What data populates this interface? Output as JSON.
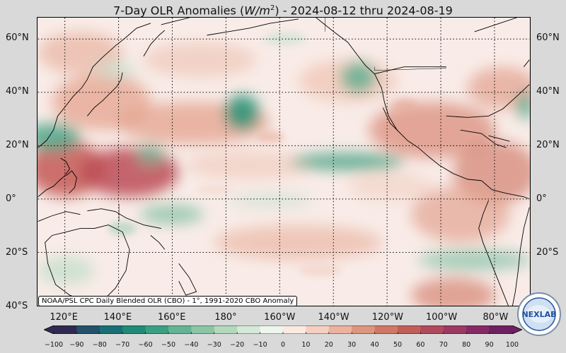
{
  "title": {
    "prefix": "7-Day OLR Anomalies (",
    "unit_var": "W/m",
    "unit_exp": "2",
    "suffix": ") - 2024-08-12 thru 2024-08-19"
  },
  "lat_labels": [
    "60°N",
    "40°N",
    "20°N",
    "0°",
    "20°S",
    "40°S"
  ],
  "lon_labels": [
    "120°E",
    "140°E",
    "160°E",
    "180°",
    "160°W",
    "140°W",
    "120°W",
    "100°W",
    "80°W"
  ],
  "credit": "NOAA/PSL CPC Daily Blended OLR (CBO) - 1°, 1991-2020 CBO Anomaly",
  "colorbar": {
    "ticks": [
      "−100",
      "−90",
      "−80",
      "−70",
      "−60",
      "−50",
      "−40",
      "−30",
      "−20",
      "−10",
      "0",
      "10",
      "20",
      "30",
      "40",
      "50",
      "60",
      "70",
      "80",
      "90",
      "100"
    ],
    "colors": [
      "#2f2a4f",
      "#23506a",
      "#196f73",
      "#1f8a78",
      "#3a9f82",
      "#63b394",
      "#8cc5a6",
      "#b3d8be",
      "#d5e9d8",
      "#eef5ef",
      "#fbeae3",
      "#f5cfc1",
      "#eab29f",
      "#dd9580",
      "#cf7867",
      "#c05e5a",
      "#b04a5d",
      "#9c3963",
      "#862a66",
      "#6e2160"
    ]
  },
  "logo": {
    "text": "NEXLAB"
  },
  "map": {
    "extent": {
      "lon_min": 110,
      "lon_max": 293,
      "lat_min": -40,
      "lat_max": 68
    },
    "colors": {
      "warm": "#c0594f",
      "cool": "#2f9a7c",
      "neutral": "#f8ece8"
    }
  }
}
